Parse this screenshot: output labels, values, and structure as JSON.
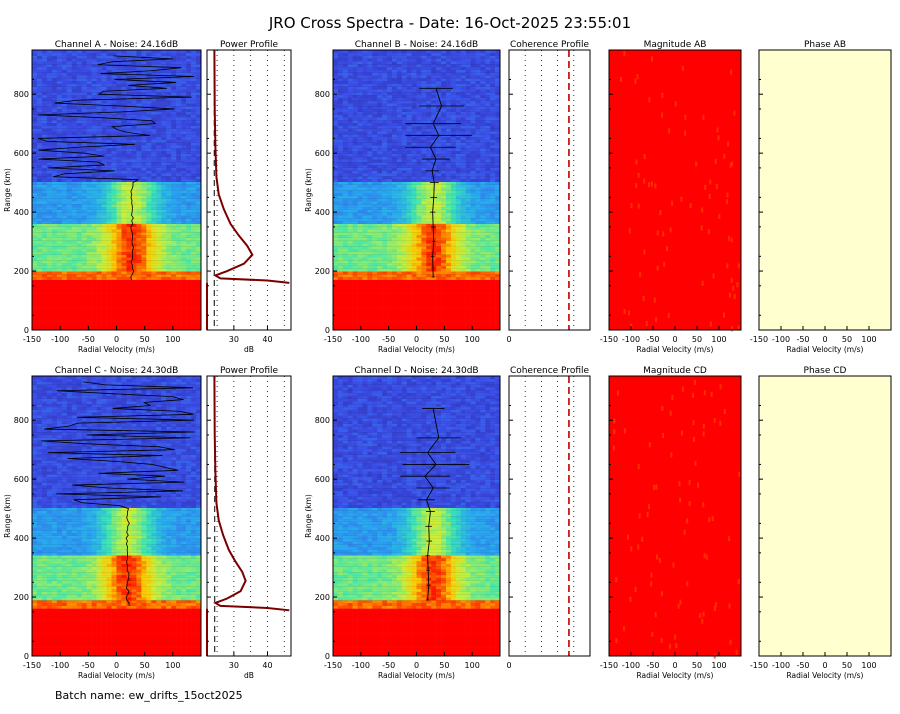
{
  "title": "JRO Cross Spectra - Date: 16-Oct-2025 23:55:01",
  "batch": "Batch name: ew_drifts_15oct2025",
  "colors": {
    "frame": "#000000",
    "profile": "#7a0000",
    "sat_red": "#ff0000",
    "phase_fill": "#ffffd0"
  },
  "axes": {
    "velocity_label": "Radial Velocity (m/s)",
    "range_label": "Range (km)",
    "db_label": "dB",
    "velocity_range": [
      -150,
      150
    ],
    "velocity_ticks": [
      "-150",
      "-100",
      "-50",
      "0",
      "50",
      "100"
    ],
    "range_km_range": [
      0,
      950
    ],
    "range_ticks": [
      "0",
      "200",
      "400",
      "600",
      "800"
    ],
    "db_range": [
      22,
      47
    ],
    "db_ticks": [
      "30",
      "40"
    ],
    "coherence_tick": "0"
  },
  "rows": [
    {
      "spectra_a": {
        "title": "Channel A - Noise: 24.16dB"
      },
      "power": {
        "title": "Power Profile"
      },
      "spectra_b": {
        "title": "Channel B - Noise: 24.16dB"
      },
      "coherence": {
        "title": "Coherence Profile"
      },
      "magnitude": {
        "title": "Magnitude AB"
      },
      "phase": {
        "title": "Phase AB"
      }
    },
    {
      "spectra_a": {
        "title": "Channel C - Noise: 24.30dB"
      },
      "power": {
        "title": "Power Profile"
      },
      "spectra_b": {
        "title": "Channel D - Noise: 24.30dB"
      },
      "coherence": {
        "title": "Coherence Profile"
      },
      "magnitude": {
        "title": "Magnitude CD"
      },
      "phase": {
        "title": "Phase CD"
      }
    }
  ],
  "chart_data": [
    {
      "type": "heatmap",
      "title": "Channel A - Noise: 24.16dB",
      "xlabel": "Radial Velocity (m/s)",
      "ylabel": "Range (km)",
      "xlim": [
        -150,
        150
      ],
      "ylim": [
        0,
        950
      ],
      "layers_km": [
        [
          0,
          165,
          "saturated"
        ],
        [
          165,
          195,
          "strong"
        ],
        [
          195,
          360,
          "echo"
        ],
        [
          360,
          500,
          "moderate"
        ],
        [
          500,
          950,
          "noise"
        ]
      ],
      "doppler_peak": {
        "range_km": [
          195,
          500
        ],
        "velocity_ms": [
          20,
          35
        ]
      }
    },
    {
      "type": "line",
      "title": "Power Profile",
      "xlabel": "dB",
      "ylabel": "Range (km)",
      "xlim": [
        22,
        47
      ],
      "ylim": [
        0,
        950
      ],
      "x": [
        46.5,
        40,
        26,
        24.5,
        28,
        33,
        35.5,
        34,
        31.5,
        29,
        27,
        25.5,
        24.8,
        24.5,
        24.3,
        24.2
      ],
      "y": [
        160,
        168,
        175,
        185,
        200,
        225,
        255,
        285,
        320,
        360,
        410,
        460,
        520,
        620,
        750,
        950
      ],
      "noise_level_db": 24.16
    },
    {
      "type": "heatmap",
      "title": "Channel B - Noise: 24.16dB",
      "xlabel": "Radial Velocity (m/s)",
      "ylabel": "Range (km)",
      "xlim": [
        -150,
        150
      ],
      "ylim": [
        0,
        950
      ],
      "layers_km": [
        [
          0,
          165,
          "saturated"
        ],
        [
          165,
          195,
          "strong"
        ],
        [
          195,
          360,
          "echo"
        ],
        [
          360,
          500,
          "moderate"
        ],
        [
          500,
          950,
          "noise"
        ]
      ],
      "mean_velocity": {
        "range_km": [
          180,
          250,
          300,
          350,
          400,
          450,
          500,
          540,
          580,
          620,
          660,
          700,
          760,
          820
        ],
        "velocity_ms": [
          30,
          29,
          31,
          30,
          29,
          31,
          32,
          28,
          35,
          25,
          40,
          30,
          45,
          35
        ],
        "error_ms": [
          3,
          3,
          3,
          4,
          5,
          6,
          8,
          12,
          25,
          45,
          60,
          50,
          40,
          30
        ]
      }
    },
    {
      "type": "line",
      "title": "Coherence Profile",
      "xlim": [
        0,
        1
      ],
      "ylim": [
        0,
        950
      ],
      "x": [],
      "y": []
    },
    {
      "type": "heatmap",
      "title": "Magnitude AB",
      "xlabel": "Radial Velocity (m/s)",
      "xlim": [
        -150,
        150
      ],
      "ylim": [
        0,
        950
      ],
      "fill": "saturated"
    },
    {
      "type": "heatmap",
      "title": "Phase AB",
      "xlabel": "Radial Velocity (m/s)",
      "xlim": [
        -150,
        150
      ],
      "ylim": [
        0,
        950
      ],
      "fill": "empty"
    },
    {
      "type": "heatmap",
      "title": "Channel C - Noise: 24.30dB",
      "xlabel": "Radial Velocity (m/s)",
      "ylabel": "Range (km)",
      "xlim": [
        -150,
        150
      ],
      "ylim": [
        0,
        950
      ],
      "layers_km": [
        [
          0,
          160,
          "saturated"
        ],
        [
          160,
          190,
          "strong"
        ],
        [
          190,
          340,
          "echo"
        ],
        [
          340,
          500,
          "moderate"
        ],
        [
          500,
          950,
          "noise"
        ]
      ],
      "doppler_peak": {
        "range_km": [
          190,
          500
        ],
        "velocity_ms": [
          15,
          25
        ]
      }
    },
    {
      "type": "line",
      "title": "Power Profile",
      "xlabel": "dB",
      "ylabel": "Range (km)",
      "xlim": [
        22,
        47
      ],
      "ylim": [
        0,
        950
      ],
      "x": [
        46.5,
        40,
        26,
        24.5,
        28,
        32,
        33.5,
        32.5,
        30.5,
        28.5,
        26.8,
        25.5,
        24.8,
        24.5,
        24.3,
        24.2
      ],
      "y": [
        155,
        163,
        170,
        180,
        195,
        220,
        255,
        285,
        320,
        360,
        410,
        460,
        520,
        620,
        750,
        950
      ],
      "noise_level_db": 24.3
    },
    {
      "type": "heatmap",
      "title": "Channel D - Noise: 24.30dB",
      "xlabel": "Radial Velocity (m/s)",
      "ylabel": "Range (km)",
      "xlim": [
        -150,
        150
      ],
      "ylim": [
        0,
        950
      ],
      "layers_km": [
        [
          0,
          160,
          "saturated"
        ],
        [
          160,
          190,
          "strong"
        ],
        [
          190,
          340,
          "echo"
        ],
        [
          340,
          500,
          "moderate"
        ],
        [
          500,
          950,
          "noise"
        ]
      ],
      "mean_velocity": {
        "range_km": [
          190,
          240,
          290,
          340,
          390,
          440,
          490,
          530,
          570,
          610,
          650,
          690,
          740,
          840
        ],
        "velocity_ms": [
          20,
          22,
          21,
          20,
          23,
          22,
          25,
          18,
          30,
          15,
          35,
          20,
          40,
          30
        ],
        "error_ms": [
          3,
          3,
          3,
          4,
          5,
          6,
          8,
          15,
          30,
          45,
          60,
          50,
          40,
          20
        ]
      }
    },
    {
      "type": "line",
      "title": "Coherence Profile",
      "xlim": [
        0,
        1
      ],
      "ylim": [
        0,
        950
      ],
      "x": [],
      "y": []
    },
    {
      "type": "heatmap",
      "title": "Magnitude CD",
      "xlabel": "Radial Velocity (m/s)",
      "xlim": [
        -150,
        150
      ],
      "ylim": [
        0,
        950
      ],
      "fill": "saturated"
    },
    {
      "type": "heatmap",
      "title": "Phase CD",
      "xlabel": "Radial Velocity (m/s)",
      "xlim": [
        -150,
        150
      ],
      "ylim": [
        0,
        950
      ],
      "fill": "empty"
    }
  ]
}
